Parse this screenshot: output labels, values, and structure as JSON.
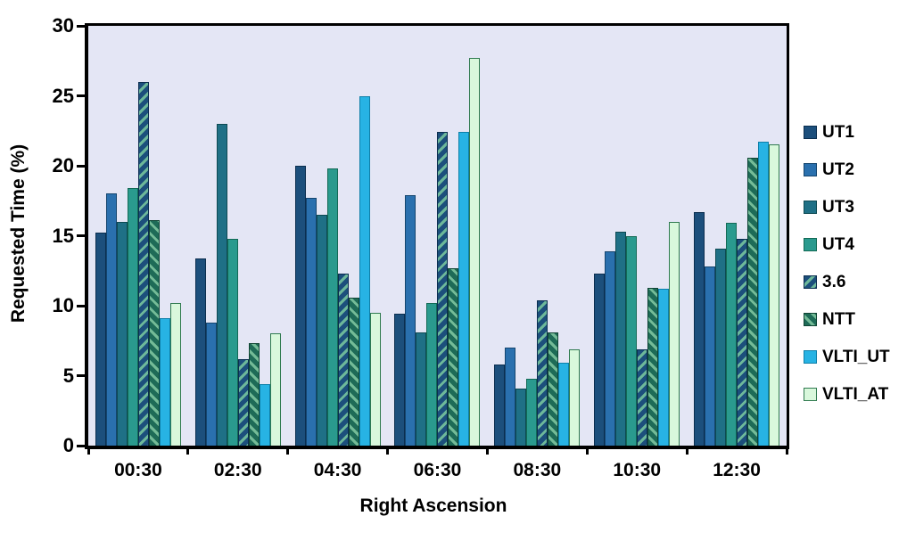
{
  "chart_data": {
    "type": "bar",
    "title": "",
    "xlabel": "Right Ascension",
    "ylabel": "Requested Time (%)",
    "ylim": [
      0,
      30
    ],
    "yticks": [
      0,
      5,
      10,
      15,
      20,
      25,
      30
    ],
    "grid": false,
    "legend_position": "right",
    "plot_background": "#e4e6f5",
    "axis_color": "#000000",
    "categories": [
      "00:30",
      "02:30",
      "04:30",
      "06:30",
      "08:30",
      "10:30",
      "12:30"
    ],
    "series": [
      {
        "name": "UT1",
        "values": [
          15.2,
          13.4,
          20.0,
          9.4,
          5.8,
          12.3,
          16.7
        ]
      },
      {
        "name": "UT2",
        "values": [
          18.0,
          8.8,
          17.7,
          17.9,
          7.0,
          13.9,
          12.8
        ]
      },
      {
        "name": "UT3",
        "values": [
          16.0,
          23.0,
          16.5,
          8.1,
          4.1,
          15.3,
          14.1
        ]
      },
      {
        "name": "UT4",
        "values": [
          18.4,
          14.8,
          19.8,
          10.2,
          4.8,
          15.0,
          15.9
        ]
      },
      {
        "name": "3.6",
        "values": [
          26.0,
          6.2,
          12.3,
          22.4,
          10.4,
          6.9,
          14.8
        ]
      },
      {
        "name": "NTT",
        "values": [
          16.1,
          7.3,
          10.6,
          12.7,
          8.1,
          11.3,
          20.6
        ]
      },
      {
        "name": "VLTI_UT",
        "values": [
          9.1,
          4.4,
          25.0,
          22.4,
          5.9,
          11.2,
          21.7
        ]
      },
      {
        "name": "VLTI_AT",
        "values": [
          10.2,
          8.0,
          9.5,
          27.7,
          6.9,
          16.0,
          21.5
        ]
      }
    ]
  },
  "styles": {
    "series": [
      {
        "name": "UT1",
        "fill": "#1c4f7c",
        "border": "#0b2e4f",
        "hatch": "none",
        "stripe": ""
      },
      {
        "name": "UT2",
        "fill": "#2a70ae",
        "border": "#14456e",
        "hatch": "none",
        "stripe": ""
      },
      {
        "name": "UT3",
        "fill": "#1f7086",
        "border": "#0d4a52",
        "hatch": "none",
        "stripe": ""
      },
      {
        "name": "UT4",
        "fill": "#2a9a8e",
        "border": "#136a55",
        "hatch": "none",
        "stripe": ""
      },
      {
        "name": "3.6",
        "fill": "#1c4f7c",
        "border": "#0b2e4f",
        "hatch": "fwd",
        "stripe": "#6db89a"
      },
      {
        "name": "NTT",
        "fill": "#1e6b57",
        "border": "#0f4433",
        "hatch": "back",
        "stripe": "#74bb97"
      },
      {
        "name": "VLTI_UT",
        "fill": "#27b3e4",
        "border": "#0e7fa8",
        "hatch": "none",
        "stripe": ""
      },
      {
        "name": "VLTI_AT",
        "fill": "#d9f8dc",
        "border": "#2f7a4f",
        "hatch": "none",
        "stripe": ""
      }
    ]
  }
}
